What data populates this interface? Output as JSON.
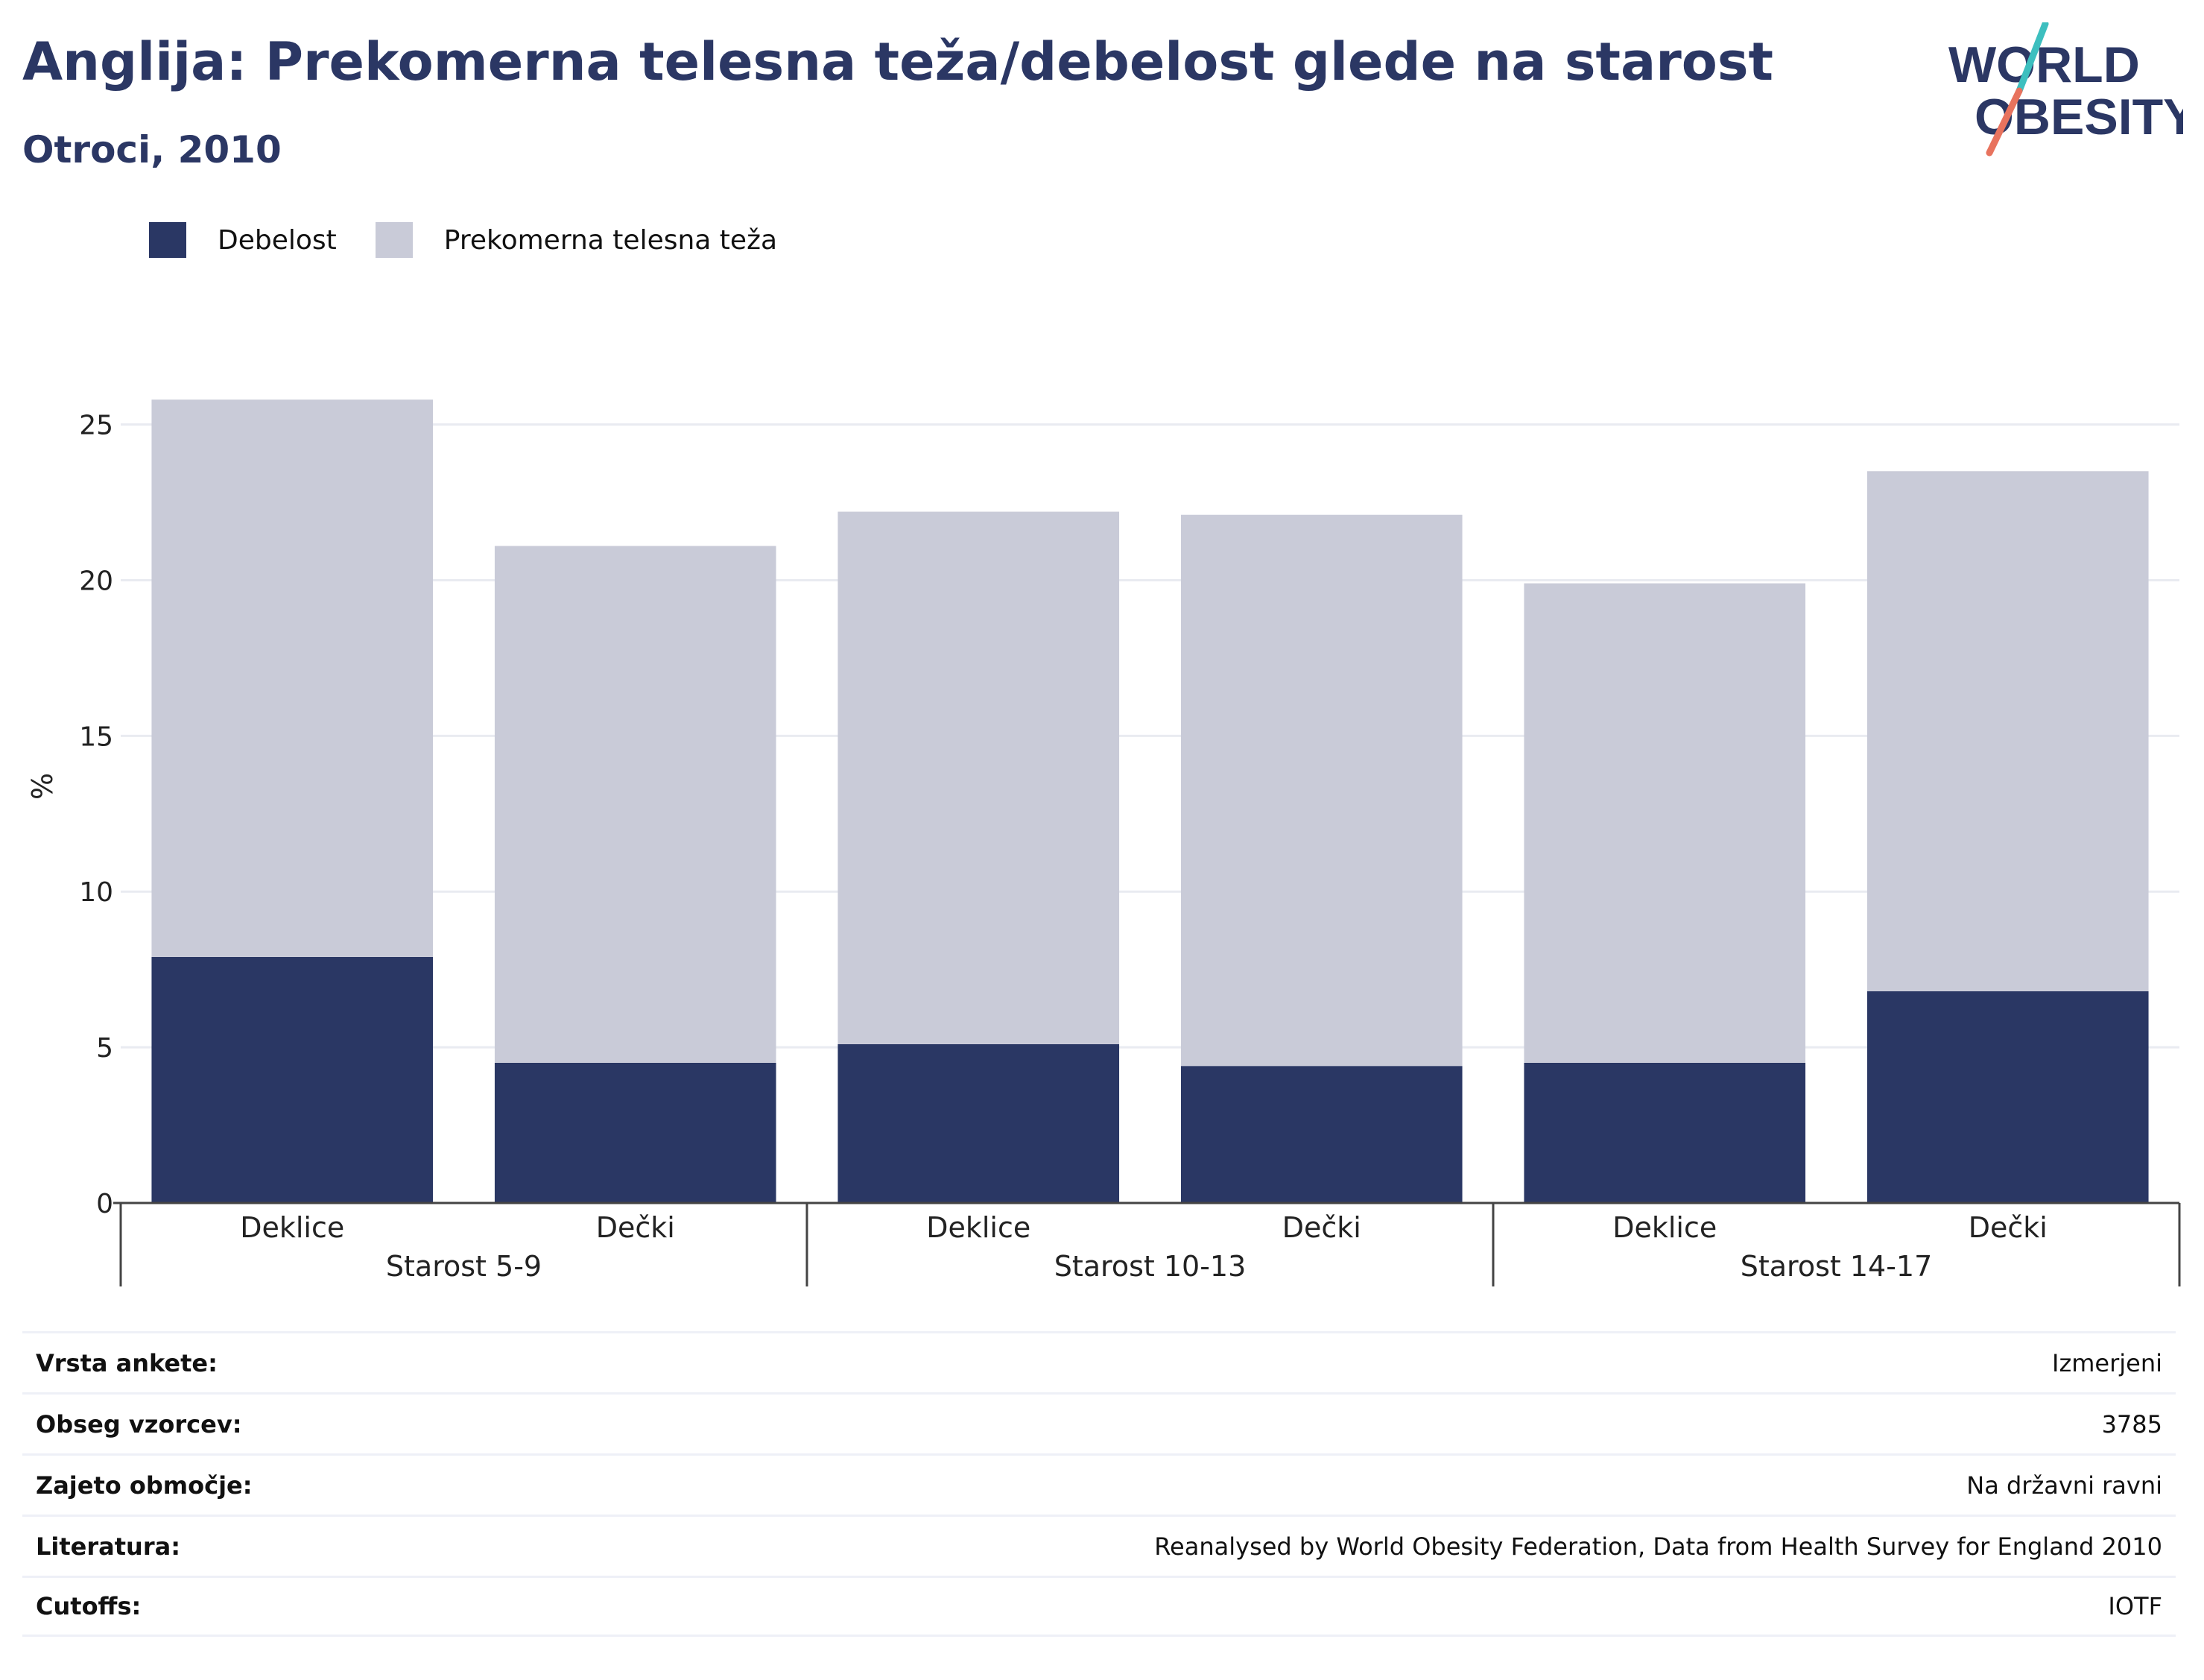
{
  "title": "Anglija: Prekomerna telesna teža/debelost glede na starost",
  "subtitle": "Otroci, 2010",
  "logo": {
    "line1": "WORLD",
    "line2": "OBESITY",
    "slash_colors": [
      "#3dbfbf",
      "#e8735e"
    ]
  },
  "legend": [
    {
      "label": "Debelost",
      "color": "#2a3764"
    },
    {
      "label": "Prekomerna telesna teža",
      "color": "#c9cbd8"
    }
  ],
  "chart_data": {
    "type": "bar",
    "stacked": true,
    "ylabel": "%",
    "ylim": [
      0,
      27
    ],
    "yticks": [
      0,
      5,
      10,
      15,
      20,
      25
    ],
    "grid": true,
    "legend_position": "top-left",
    "groups": [
      {
        "label": "Starost 5-9",
        "categories": [
          "Deklice",
          "Dečki"
        ]
      },
      {
        "label": "Starost 10-13",
        "categories": [
          "Deklice",
          "Dečki"
        ]
      },
      {
        "label": "Starost 14-17",
        "categories": [
          "Deklice",
          "Dečki"
        ]
      }
    ],
    "series": [
      {
        "name": "Debelost",
        "color": "#2a3764",
        "values": [
          7.9,
          4.5,
          5.1,
          4.4,
          4.5,
          6.8
        ]
      },
      {
        "name": "Prekomerna telesna teža",
        "color": "#c9cbd8",
        "values": [
          17.9,
          16.6,
          17.1,
          17.7,
          15.4,
          16.7
        ]
      }
    ]
  },
  "info": [
    {
      "label": "Vrsta ankete:",
      "value": "Izmerjeni"
    },
    {
      "label": "Obseg vzorcev:",
      "value": "3785"
    },
    {
      "label": "Zajeto območje:",
      "value": "Na državni ravni"
    },
    {
      "label": "Literatura:",
      "value": "Reanalysed by World Obesity Federation, Data from Health Survey for England 2010"
    },
    {
      "label": "Cutoffs:",
      "value": "IOTF"
    }
  ]
}
